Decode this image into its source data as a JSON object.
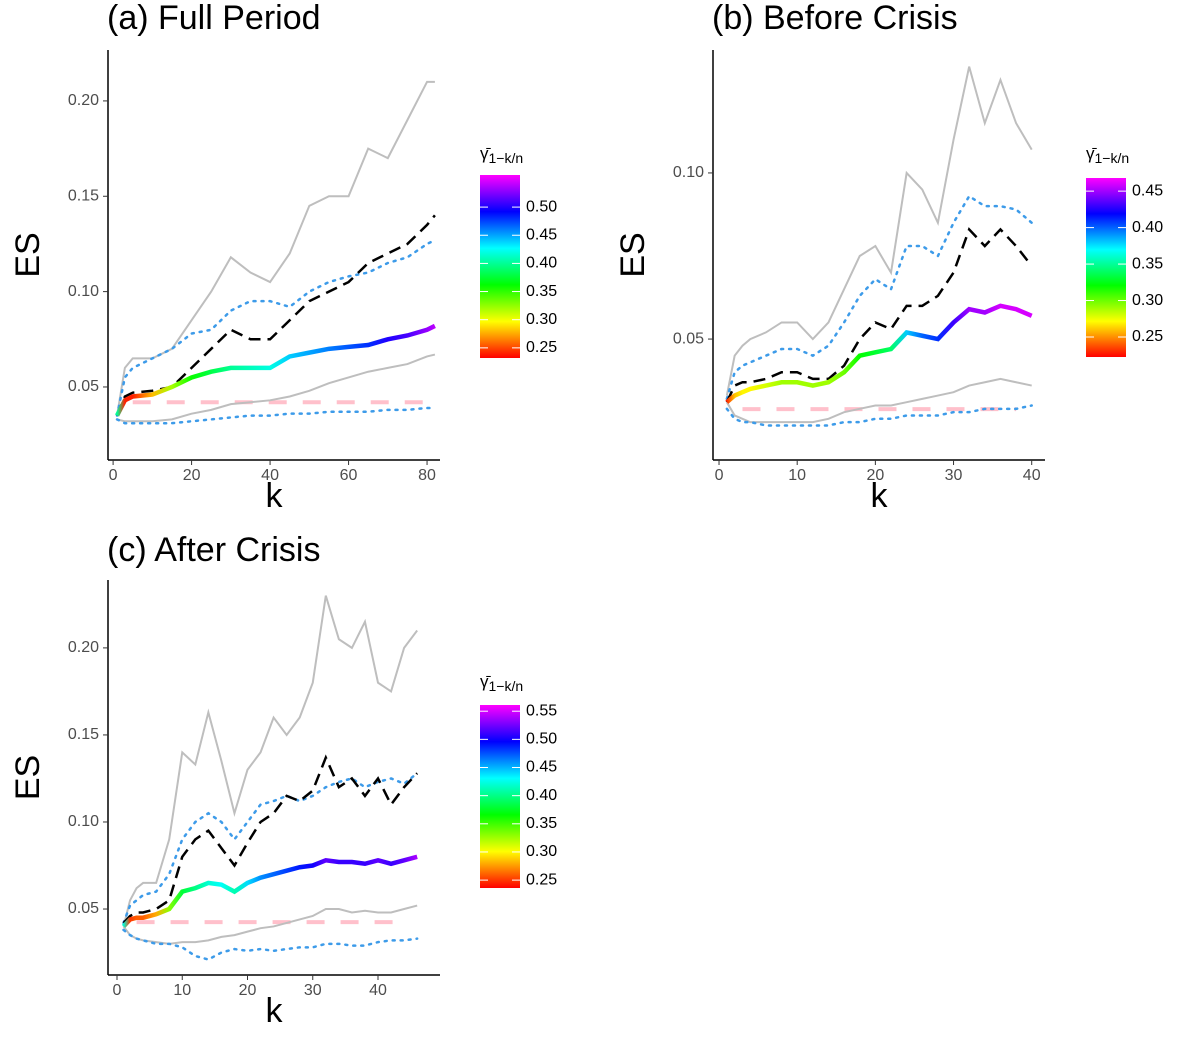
{
  "chart_data": [
    {
      "type": "line",
      "title": "(a) Full Period",
      "x_label": "k",
      "y_label": "ES",
      "x": [
        1,
        3,
        5,
        10,
        15,
        20,
        25,
        30,
        35,
        40,
        45,
        50,
        55,
        60,
        65,
        70,
        75,
        80,
        82
      ],
      "xlim": [
        -1.3,
        83.3
      ],
      "xticks": [
        0,
        20,
        40,
        60,
        80
      ],
      "ylim": [
        0.0117,
        0.2267
      ],
      "yticks": [
        0.05,
        {
          "value": 0.1,
          "label": "0.10"
        },
        0.15,
        {
          "value": 0.2,
          "label": "0.20"
        }
      ],
      "hline": 0.042,
      "hline_color": "#ffc0cb",
      "series": [
        {
          "color": "#bebebe",
          "style": "solid",
          "values": [
            0.035,
            0.06,
            0.065,
            0.065,
            0.07,
            0.085,
            0.1,
            0.118,
            0.11,
            0.105,
            0.12,
            0.145,
            0.15,
            0.15,
            0.175,
            0.17,
            0.19,
            0.21,
            0.21
          ]
        },
        {
          "color": "#bebebe",
          "style": "solid",
          "values": [
            0.033,
            0.032,
            0.032,
            0.032,
            0.033,
            0.036,
            0.038,
            0.041,
            0.042,
            0.043,
            0.045,
            0.048,
            0.052,
            0.055,
            0.058,
            0.06,
            0.062,
            0.066,
            0.067
          ]
        },
        {
          "color": "#3d9be9",
          "style": "dotted",
          "values": [
            0.035,
            0.055,
            0.06,
            0.065,
            0.07,
            0.078,
            0.08,
            0.09,
            0.095,
            0.095,
            0.092,
            0.1,
            0.105,
            0.108,
            0.11,
            0.115,
            0.118,
            0.125,
            0.127
          ]
        },
        {
          "color": "#3d9be9",
          "style": "dotted",
          "values": [
            0.033,
            0.031,
            0.031,
            0.031,
            0.031,
            0.032,
            0.033,
            0.034,
            0.035,
            0.035,
            0.036,
            0.036,
            0.037,
            0.037,
            0.037,
            0.038,
            0.038,
            0.039,
            0.039
          ]
        },
        {
          "color": "#000000",
          "style": "dashed",
          "values": [
            0.035,
            0.045,
            0.047,
            0.048,
            0.05,
            0.06,
            0.07,
            0.08,
            0.075,
            0.075,
            0.085,
            0.095,
            0.1,
            0.105,
            0.115,
            0.12,
            0.125,
            0.135,
            0.14
          ]
        },
        {
          "style": "colormap",
          "values": [
            0.035,
            0.043,
            0.045,
            0.046,
            0.05,
            0.055,
            0.058,
            0.06,
            0.06,
            0.06,
            0.066,
            0.068,
            0.07,
            0.071,
            0.072,
            0.075,
            0.077,
            0.08,
            0.082
          ],
          "color_values": [
            0.4,
            0.24,
            0.24,
            0.28,
            0.32,
            0.36,
            0.38,
            0.4,
            0.41,
            0.42,
            0.44,
            0.45,
            0.46,
            0.47,
            0.48,
            0.5,
            0.51,
            0.53,
            0.54
          ]
        }
      ],
      "colorbar": {
        "title": "γ̄",
        "title_sub": "1−k/n",
        "lim": [
          0.232,
          0.557
        ],
        "ticks": [
          0.25,
          {
            "value": 0.3,
            "label": "0.30"
          },
          0.35,
          {
            "value": 0.4,
            "label": "0.40"
          },
          0.45,
          {
            "value": 0.5,
            "label": "0.50"
          }
        ]
      }
    },
    {
      "type": "line",
      "title": "(b) Before Crisis",
      "x_label": "k",
      "y_label": "ES",
      "x": [
        1,
        2,
        3,
        4,
        6,
        8,
        10,
        12,
        14,
        16,
        18,
        20,
        22,
        24,
        26,
        28,
        30,
        32,
        34,
        36,
        38,
        40
      ],
      "xlim": [
        -0.77,
        41.7
      ],
      "xticks": [
        0,
        10,
        20,
        30,
        40
      ],
      "ylim": [
        0.0136,
        0.137
      ],
      "yticks": [
        0.05,
        {
          "value": 0.1,
          "label": "0.10"
        }
      ],
      "hline": 0.0289,
      "hline_color": "#ffc0cb",
      "series": [
        {
          "color": "#bebebe",
          "style": "solid",
          "values": [
            0.033,
            0.045,
            0.048,
            0.05,
            0.052,
            0.055,
            0.055,
            0.05,
            0.055,
            0.065,
            0.075,
            0.078,
            0.07,
            0.1,
            0.095,
            0.085,
            0.11,
            0.132,
            0.115,
            0.128,
            0.115,
            0.107
          ]
        },
        {
          "color": "#bebebe",
          "style": "solid",
          "values": [
            0.031,
            0.027,
            0.026,
            0.025,
            0.025,
            0.025,
            0.025,
            0.025,
            0.026,
            0.028,
            0.029,
            0.03,
            0.03,
            0.031,
            0.032,
            0.033,
            0.034,
            0.036,
            0.037,
            0.038,
            0.037,
            0.036
          ]
        },
        {
          "color": "#3d9be9",
          "style": "dotted",
          "values": [
            0.032,
            0.04,
            0.042,
            0.043,
            0.045,
            0.047,
            0.047,
            0.045,
            0.048,
            0.055,
            0.063,
            0.068,
            0.065,
            0.078,
            0.078,
            0.075,
            0.085,
            0.093,
            0.09,
            0.09,
            0.089,
            0.085
          ]
        },
        {
          "color": "#3d9be9",
          "style": "dotted",
          "values": [
            0.029,
            0.026,
            0.025,
            0.025,
            0.024,
            0.024,
            0.024,
            0.024,
            0.024,
            0.025,
            0.025,
            0.026,
            0.026,
            0.027,
            0.027,
            0.027,
            0.028,
            0.028,
            0.029,
            0.029,
            0.029,
            0.03
          ]
        },
        {
          "color": "#000000",
          "style": "dashed",
          "values": [
            0.031,
            0.036,
            0.037,
            0.037,
            0.038,
            0.04,
            0.04,
            0.038,
            0.038,
            0.042,
            0.05,
            0.055,
            0.053,
            0.06,
            0.06,
            0.063,
            0.07,
            0.083,
            0.078,
            0.083,
            0.078,
            0.072
          ]
        },
        {
          "style": "colormap",
          "values": [
            0.031,
            0.033,
            0.034,
            0.035,
            0.036,
            0.037,
            0.037,
            0.036,
            0.037,
            0.04,
            0.045,
            0.046,
            0.047,
            0.052,
            0.051,
            0.05,
            0.055,
            0.059,
            0.058,
            0.06,
            0.059,
            0.057
          ],
          "color_values": [
            0.23,
            0.26,
            0.27,
            0.27,
            0.28,
            0.29,
            0.29,
            0.29,
            0.29,
            0.3,
            0.32,
            0.33,
            0.34,
            0.38,
            0.4,
            0.41,
            0.43,
            0.45,
            0.45,
            0.46,
            0.46,
            0.46
          ]
        }
      ],
      "colorbar": {
        "title": "γ̄",
        "title_sub": "1−k/n",
        "lim": [
          0.2226,
          0.468
        ],
        "ticks": [
          0.25,
          {
            "value": 0.3,
            "label": "0.30"
          },
          0.35,
          {
            "value": 0.4,
            "label": "0.40"
          },
          0.45
        ]
      }
    },
    {
      "type": "line",
      "title": "(c) After Crisis",
      "x_label": "k",
      "y_label": "ES",
      "x": [
        1,
        2,
        3,
        4,
        6,
        8,
        10,
        12,
        14,
        16,
        18,
        20,
        22,
        24,
        26,
        28,
        30,
        32,
        34,
        36,
        38,
        40,
        42,
        44,
        46
      ],
      "xlim": [
        -1.38,
        49.5
      ],
      "xticks": [
        0,
        10,
        20,
        30,
        40
      ],
      "ylim": [
        0.0121,
        0.239
      ],
      "yticks": [
        0.05,
        {
          "value": 0.1,
          "label": "0.10"
        },
        0.15,
        {
          "value": 0.2,
          "label": "0.20"
        }
      ],
      "hline": 0.0425,
      "hline_color": "#ffc0cb",
      "series": [
        {
          "color": "#bebebe",
          "style": "solid",
          "values": [
            0.04,
            0.055,
            0.062,
            0.065,
            0.065,
            0.09,
            0.14,
            0.133,
            0.163,
            0.135,
            0.105,
            0.13,
            0.14,
            0.16,
            0.15,
            0.16,
            0.18,
            0.23,
            0.205,
            0.2,
            0.215,
            0.18,
            0.175,
            0.2,
            0.21
          ]
        },
        {
          "color": "#bebebe",
          "style": "solid",
          "values": [
            0.04,
            0.035,
            0.033,
            0.032,
            0.031,
            0.03,
            0.031,
            0.031,
            0.032,
            0.034,
            0.035,
            0.037,
            0.039,
            0.04,
            0.042,
            0.044,
            0.046,
            0.05,
            0.05,
            0.048,
            0.049,
            0.048,
            0.048,
            0.05,
            0.052
          ]
        },
        {
          "color": "#3d9be9",
          "style": "dotted",
          "values": [
            0.042,
            0.052,
            0.055,
            0.058,
            0.06,
            0.07,
            0.09,
            0.1,
            0.105,
            0.1,
            0.09,
            0.1,
            0.11,
            0.112,
            0.115,
            0.112,
            0.115,
            0.12,
            0.123,
            0.125,
            0.12,
            0.123,
            0.125,
            0.122,
            0.128
          ]
        },
        {
          "color": "#3d9be9",
          "style": "dotted",
          "values": [
            0.038,
            0.035,
            0.033,
            0.032,
            0.03,
            0.03,
            0.028,
            0.023,
            0.021,
            0.025,
            0.027,
            0.026,
            0.027,
            0.026,
            0.027,
            0.028,
            0.028,
            0.03,
            0.03,
            0.029,
            0.029,
            0.031,
            0.032,
            0.032,
            0.033
          ]
        },
        {
          "color": "#000000",
          "style": "dashed",
          "values": [
            0.042,
            0.046,
            0.048,
            0.048,
            0.05,
            0.055,
            0.08,
            0.09,
            0.095,
            0.085,
            0.075,
            0.088,
            0.1,
            0.105,
            0.115,
            0.112,
            0.118,
            0.137,
            0.12,
            0.125,
            0.115,
            0.125,
            0.11,
            0.12,
            0.128
          ]
        },
        {
          "style": "colormap",
          "values": [
            0.04,
            0.044,
            0.045,
            0.045,
            0.047,
            0.05,
            0.06,
            0.062,
            0.065,
            0.064,
            0.06,
            0.065,
            0.068,
            0.07,
            0.072,
            0.074,
            0.075,
            0.078,
            0.077,
            0.077,
            0.076,
            0.078,
            0.076,
            0.078,
            0.08
          ],
          "color_values": [
            0.42,
            0.25,
            0.26,
            0.26,
            0.28,
            0.33,
            0.38,
            0.4,
            0.42,
            0.43,
            0.41,
            0.44,
            0.46,
            0.47,
            0.48,
            0.49,
            0.5,
            0.52,
            0.51,
            0.51,
            0.51,
            0.52,
            0.51,
            0.52,
            0.54
          ]
        }
      ],
      "colorbar": {
        "title": "γ̄",
        "title_sub": "1−k/n",
        "lim": [
          0.236,
          0.561
        ],
        "ticks": [
          0.25,
          {
            "value": 0.3,
            "label": "0.30"
          },
          0.35,
          {
            "value": 0.4,
            "label": "0.40"
          },
          0.45,
          {
            "value": 0.5,
            "label": "0.50"
          },
          0.55
        ]
      }
    }
  ]
}
